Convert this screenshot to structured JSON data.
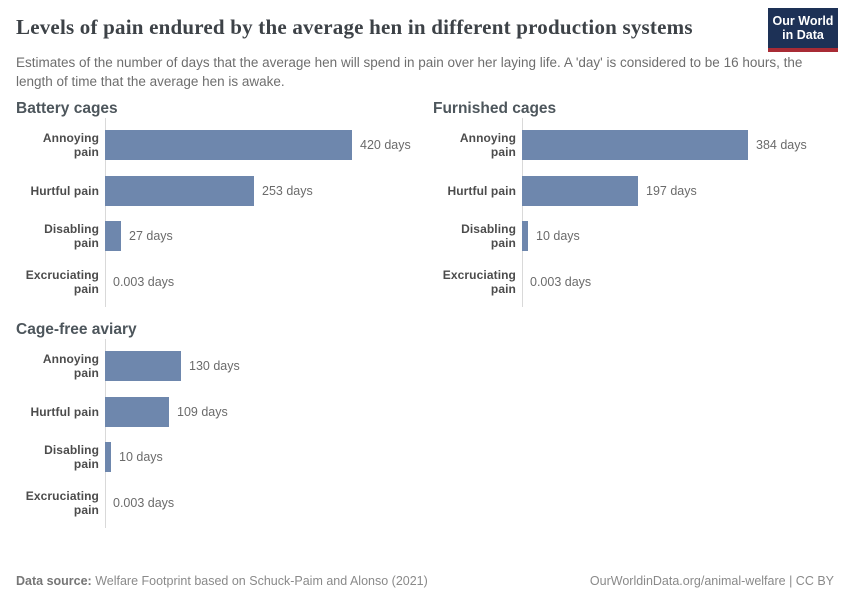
{
  "header": {
    "title": "Levels of pain endured by the average hen in different production systems",
    "subtitle": "Estimates of the number of days that the average hen will spend in pain over her laying life. A 'day' is considered to be 16 hours, the length of time that the average hen is awake.",
    "logo": {
      "line1": "Our World",
      "line2": "in Data",
      "bg_color": "#1d3156",
      "accent_color": "#a82b35"
    }
  },
  "chart_data": {
    "type": "bar",
    "orientation": "horizontal",
    "unit": "days",
    "grid": false,
    "bar_color": "#6e87ad",
    "xmax": 430,
    "categories": [
      "Annoying pain",
      "Hurtful pain",
      "Disabling pain",
      "Excruciating pain"
    ],
    "charts": [
      {
        "title": "Battery cages",
        "values": [
          420,
          253,
          27,
          0.003
        ],
        "value_labels": [
          "420 days",
          "253 days",
          "27 days",
          "0.003 days"
        ]
      },
      {
        "title": "Furnished cages",
        "values": [
          384,
          197,
          10,
          0.003
        ],
        "value_labels": [
          "384 days",
          "197 days",
          "10 days",
          "0.003 days"
        ]
      },
      {
        "title": "Cage-free aviary",
        "values": [
          130,
          109,
          10,
          0.003
        ],
        "value_labels": [
          "130 days",
          "109 days",
          "10 days",
          "0.003 days"
        ]
      }
    ]
  },
  "footer": {
    "source_label": "Data source:",
    "source_text": " Welfare Footprint based on Schuck-Paim and Alonso (2021)",
    "credit_text": "OurWorldinData.org/animal-welfare | CC BY"
  }
}
